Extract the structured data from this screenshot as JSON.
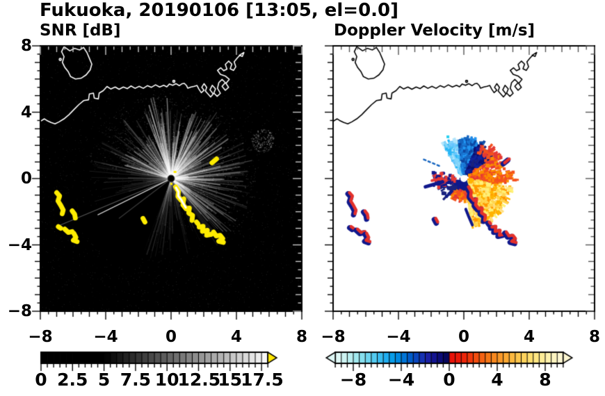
{
  "title": "Fukuoka, 20190106 [13:05, el=0.0]",
  "panels": {
    "snr": {
      "subtitle": "SNR [dB]"
    },
    "vel": {
      "subtitle": "Doppler Velocity [m/s]"
    }
  },
  "axes": {
    "xlim": [
      -8,
      8
    ],
    "ylim": [
      -8,
      8
    ],
    "xticks": [
      -8,
      -4,
      0,
      4,
      8
    ],
    "yticks": [
      8,
      4,
      0,
      -4,
      -8
    ],
    "xtick_labels": [
      "−8",
      "−4",
      "0",
      "4",
      "8"
    ],
    "ytick_labels": [
      "8",
      "4",
      "0",
      "−4",
      "−8"
    ],
    "minor_tick_step": 0.5,
    "mid_tick_step": 1,
    "major_tick_step": 4
  },
  "coastline": {
    "mainland": [
      [
        -8,
        3.45
      ],
      [
        -7.75,
        3.6
      ],
      [
        -7.6,
        3.5
      ],
      [
        -7.35,
        3.38
      ],
      [
        -7.1,
        3.3
      ],
      [
        -6.85,
        3.42
      ],
      [
        -6.55,
        3.6
      ],
      [
        -6.25,
        3.85
      ],
      [
        -5.95,
        4.15
      ],
      [
        -5.65,
        4.45
      ],
      [
        -5.35,
        4.7
      ],
      [
        -5.05,
        4.75
      ],
      [
        -5.0,
        5.1
      ],
      [
        -4.75,
        5.15
      ],
      [
        -4.7,
        4.85
      ],
      [
        -4.45,
        4.8
      ],
      [
        -4.4,
        5.15
      ],
      [
        -4.15,
        5.3
      ],
      [
        -3.92,
        5.55
      ],
      [
        -3.68,
        5.4
      ],
      [
        -3.42,
        5.52
      ],
      [
        -3.18,
        5.38
      ],
      [
        -2.92,
        5.52
      ],
      [
        -2.68,
        5.42
      ],
      [
        -2.45,
        5.58
      ],
      [
        -2.2,
        5.44
      ],
      [
        -1.95,
        5.56
      ],
      [
        -1.7,
        5.44
      ],
      [
        -1.45,
        5.6
      ],
      [
        -1.2,
        5.5
      ],
      [
        -0.95,
        5.65
      ],
      [
        -0.7,
        5.52
      ],
      [
        -0.45,
        5.62
      ],
      [
        -0.26,
        5.53
      ],
      [
        -0.1,
        5.7
      ],
      [
        0.1,
        5.62
      ],
      [
        0.3,
        5.72
      ],
      [
        0.5,
        5.6
      ],
      [
        0.68,
        5.72
      ],
      [
        0.81,
        5.74
      ],
      [
        0.95,
        5.6
      ],
      [
        1.02,
        5.45
      ],
      [
        1.22,
        5.52
      ],
      [
        1.42,
        5.56
      ],
      [
        1.59,
        5.61
      ],
      [
        1.7,
        5.4
      ],
      [
        1.85,
        5.18
      ],
      [
        2.02,
        5.32
      ],
      [
        1.88,
        5.5
      ],
      [
        2.02,
        5.72
      ],
      [
        2.18,
        5.5
      ],
      [
        2.1,
        5.28
      ],
      [
        2.28,
        5.08
      ],
      [
        2.42,
        4.92
      ],
      [
        2.58,
        5.1
      ],
      [
        2.38,
        5.35
      ],
      [
        2.52,
        5.62
      ],
      [
        2.72,
        5.4
      ],
      [
        2.62,
        5.15
      ],
      [
        2.82,
        4.96
      ],
      [
        3.02,
        5.14
      ],
      [
        2.84,
        5.44
      ],
      [
        2.92,
        5.78
      ],
      [
        3.12,
        5.98
      ],
      [
        3.32,
        5.78
      ],
      [
        3.12,
        5.56
      ],
      [
        3.32,
        5.32
      ],
      [
        3.52,
        5.5
      ],
      [
        3.36,
        5.74
      ],
      [
        3.56,
        5.98
      ],
      [
        3.32,
        6.18
      ],
      [
        3.02,
        6.28
      ],
      [
        2.84,
        6.52
      ],
      [
        3.04,
        6.68
      ],
      [
        3.22,
        6.5
      ],
      [
        3.42,
        6.6
      ],
      [
        3.32,
        6.88
      ],
      [
        3.52,
        7.08
      ],
      [
        3.72,
        6.9
      ],
      [
        3.62,
        6.62
      ],
      [
        3.82,
        6.52
      ],
      [
        3.96,
        6.74
      ],
      [
        3.86,
        7.04
      ],
      [
        4.06,
        7.28
      ],
      [
        4.26,
        7.48
      ],
      [
        4.46,
        7.6
      ],
      [
        4.36,
        7.36
      ],
      [
        4.18,
        7.44
      ]
    ],
    "island": [
      [
        -6.55,
        7.95
      ],
      [
        -6.2,
        7.7
      ],
      [
        -5.9,
        7.85
      ],
      [
        -5.6,
        7.75
      ],
      [
        -5.35,
        7.9
      ],
      [
        -5.15,
        7.6
      ],
      [
        -5.0,
        7.25
      ],
      [
        -4.85,
        6.9
      ],
      [
        -4.95,
        6.55
      ],
      [
        -5.2,
        6.25
      ],
      [
        -5.5,
        6.05
      ],
      [
        -5.85,
        6.0
      ],
      [
        -6.15,
        6.15
      ],
      [
        -6.3,
        6.45
      ],
      [
        -6.5,
        6.7
      ],
      [
        -6.65,
        7.0
      ],
      [
        -6.55,
        7.35
      ],
      [
        -6.7,
        7.65
      ],
      [
        -6.55,
        7.95
      ]
    ],
    "islets": [
      [
        0.17,
        5.86
      ],
      [
        -6.78,
        7.18
      ]
    ]
  },
  "chart_data": [
    {
      "type": "heatmap",
      "title": "SNR [dB]",
      "xlim": [
        -8,
        8
      ],
      "ylim": [
        -8,
        8
      ],
      "background": "#000000",
      "coastline_color": "#ffffff",
      "radar_center": [
        0,
        0
      ],
      "colorbar": {
        "min": 0,
        "max": 18,
        "segment_step": 0.5,
        "ticks": [
          0,
          2.5,
          5,
          7.5,
          10,
          12.5,
          15,
          17.5
        ],
        "tick_labels": [
          "0",
          "2.5",
          "5",
          "7.5",
          "10",
          "12.5",
          "15",
          "17.5"
        ],
        "ramp_start_color": "#000000",
        "ramp_end_color": "#ffffff",
        "first_nonblack_value": 5,
        "overflow_arrow_color": "#ffe600"
      },
      "ray_sectors": [
        {
          "az": [
            338,
            420
          ],
          "weight": 0.34
        },
        {
          "az": [
            60,
            140
          ],
          "weight": 0.22
        },
        {
          "az": [
            140,
            200
          ],
          "weight": 0.08
        },
        {
          "az": [
            200,
            252
          ],
          "weight": 0.015
        },
        {
          "az": [
            252,
            300
          ],
          "weight": 0.1
        },
        {
          "az": [
            300,
            338
          ],
          "weight": 0.18
        }
      ],
      "special_rays": [
        {
          "az": 244,
          "len": 5.0,
          "alpha": 0.8
        },
        {
          "az": 247.5,
          "len": 7.5,
          "alpha": 0.32
        },
        {
          "az": 233,
          "len": 4.0,
          "alpha": 0.22
        }
      ],
      "speckle_cluster": {
        "x": 5.6,
        "y": 2.3,
        "r": 0.7,
        "n": 160
      },
      "high_snr_color": "#ffec00",
      "high_snr_paths": [
        [
          [
            -7.0,
            -0.85
          ],
          [
            -6.82,
            -1.05
          ],
          [
            -6.92,
            -1.35
          ],
          [
            -6.75,
            -1.62
          ],
          [
            -6.6,
            -1.9
          ],
          [
            -6.66,
            -2.12
          ]
        ],
        [
          [
            -6.05,
            -1.95
          ],
          [
            -5.9,
            -2.15
          ],
          [
            -5.86,
            -2.38
          ]
        ],
        [
          [
            -6.9,
            -2.9
          ],
          [
            -6.75,
            -3.0
          ]
        ],
        [
          [
            -6.5,
            -3.05
          ],
          [
            -6.28,
            -3.25
          ],
          [
            -6.05,
            -3.2
          ]
        ],
        [
          [
            -5.95,
            -3.3
          ],
          [
            -5.82,
            -3.55
          ],
          [
            -5.98,
            -3.72
          ],
          [
            -5.75,
            -3.8
          ]
        ],
        [
          [
            -1.72,
            -2.4
          ],
          [
            -1.6,
            -2.62
          ]
        ],
        [
          [
            2.5,
            0.95
          ],
          [
            2.78,
            1.18
          ]
        ],
        [
          [
            0.28,
            -0.5
          ],
          [
            0.45,
            -0.78
          ],
          [
            0.42,
            -1.08
          ],
          [
            0.62,
            -1.32
          ],
          [
            0.78,
            -1.22
          ],
          [
            0.72,
            -1.58
          ],
          [
            0.92,
            -1.82
          ],
          [
            1.12,
            -1.78
          ],
          [
            1.08,
            -2.08
          ],
          [
            1.32,
            -2.22
          ],
          [
            1.28,
            -2.52
          ]
        ],
        [
          [
            1.56,
            -2.62
          ],
          [
            1.64,
            -2.72
          ]
        ],
        [
          [
            1.72,
            -2.92
          ],
          [
            1.96,
            -2.88
          ],
          [
            1.92,
            -3.18
          ],
          [
            2.22,
            -3.12
          ],
          [
            2.18,
            -3.42
          ],
          [
            2.46,
            -3.36
          ]
        ],
        [
          [
            2.6,
            -3.22
          ],
          [
            2.76,
            -3.46
          ],
          [
            3.0,
            -3.42
          ],
          [
            3.16,
            -3.62
          ],
          [
            2.92,
            -3.78
          ],
          [
            3.2,
            -3.85
          ]
        ]
      ],
      "white_core_path": [
        [
          0.3,
          -0.55
        ],
        [
          0.45,
          -0.8
        ],
        [
          0.44,
          -1.05
        ],
        [
          0.64,
          -1.3
        ],
        [
          0.74,
          -1.5
        ],
        [
          0.9,
          -1.75
        ]
      ]
    },
    {
      "type": "heatmap",
      "title": "Doppler Velocity [m/s]",
      "xlim": [
        -8,
        8
      ],
      "ylim": [
        -8,
        8
      ],
      "background": "#ffffff",
      "coastline_color": "#000000",
      "radar_center": [
        0,
        0
      ],
      "center_dot_color": "#ffffff",
      "colorbar": {
        "min": -9.5,
        "max": 9.5,
        "segment_step": 0.5,
        "ticks": [
          -8,
          -4,
          0,
          4,
          8
        ],
        "tick_labels": [
          "−8",
          "−4",
          "0",
          "4",
          "8"
        ],
        "colors_negative": [
          "#dff8f6",
          "#cdf3f2",
          "#b9eef0",
          "#a1e8ee",
          "#87dfee",
          "#6dd5ef",
          "#53caf0",
          "#39bcf0",
          "#20adf0",
          "#089ce8",
          "#0089e0",
          "#0074d6",
          "#005cca",
          "#0a46be",
          "#1632b2",
          "#1b20a4",
          "#131490",
          "#0c0c78",
          "#07075c"
        ],
        "colors_positive": [
          "#e81208",
          "#ea1808",
          "#ed2609",
          "#f0380c",
          "#f24e10",
          "#f46212",
          "#f67616",
          "#f8881e",
          "#f99828",
          "#fba832",
          "#fcb83e",
          "#fdc64c",
          "#fdd25c",
          "#fede6e",
          "#fee682",
          "#feec96",
          "#fef1ac",
          "#fdf4c0",
          "#fcf6d0"
        ],
        "arrow_both_ends": true
      },
      "pixel_sectors": [
        {
          "az": [
            328,
            365
          ],
          "r": [
            0.25,
            2.3
          ],
          "n": 500,
          "colors": [
            "#4fc3f7",
            "#29b6f6",
            "#6ec6ff",
            "#81d4fa",
            "#b3e5fc"
          ]
        },
        {
          "az": [
            352,
            390
          ],
          "r": [
            0.3,
            2.4
          ],
          "n": 420,
          "colors": [
            "#1e88e5",
            "#1565c0",
            "#0d47a1",
            "#1976d2",
            "#2196f3"
          ]
        },
        {
          "az": [
            22,
            55
          ],
          "r": [
            0.4,
            2.1
          ],
          "n": 300,
          "colors": [
            "#0d1b8c",
            "#10249e",
            "#0a1070",
            "#1a237e"
          ]
        },
        {
          "az": [
            28,
            62
          ],
          "r": [
            1.7,
            2.5
          ],
          "n": 55,
          "colors": [
            "#e53935",
            "#f4511e"
          ]
        },
        {
          "az": [
            55,
            100
          ],
          "r": [
            0.4,
            2.6
          ],
          "n": 210,
          "colors": [
            "#e53935",
            "#f4511e",
            "#fb8c00"
          ]
        },
        {
          "az": [
            82,
            94
          ],
          "r": [
            1.2,
            3.1
          ],
          "n": 60,
          "colors": [
            "#fb8c00",
            "#f4511e"
          ]
        },
        {
          "az": [
            100,
            170
          ],
          "r": [
            0.3,
            2.9
          ],
          "n": 720,
          "colors": [
            "#ffb300",
            "#ffd54f",
            "#ffe082",
            "#fff176",
            "#ff9800"
          ]
        },
        {
          "az": [
            170,
            220
          ],
          "r": [
            0.3,
            1.2
          ],
          "n": 160,
          "colors": [
            "#e53935",
            "#f4511e",
            "#fb8c00"
          ]
        },
        {
          "az": [
            150,
            250
          ],
          "r": [
            0.15,
            0.55
          ],
          "n": 90,
          "colors": [
            "#0d1b8c",
            "#10188c"
          ]
        },
        {
          "az": [
            220,
            260
          ],
          "r": [
            0.6,
            1.6
          ],
          "n": 40,
          "colors": [
            "#1a237e",
            "#0d1b8c"
          ]
        },
        {
          "az": [
            250,
            285
          ],
          "r": [
            0.5,
            1.9
          ],
          "n": 80,
          "colors": [
            "#e53935",
            "#10188c"
          ]
        }
      ],
      "strokes": [
        {
          "pts": [
            [
              -2.35,
              -0.5
            ],
            [
              -1.3,
              -0.2
            ]
          ],
          "color": "#10188c",
          "w": 5,
          "dash": []
        },
        {
          "pts": [
            [
              -1.95,
              -0.12
            ],
            [
              -1.32,
              0.0
            ]
          ],
          "color": "#e53935",
          "w": 4,
          "dash": []
        },
        {
          "pts": [
            [
              0.12,
              -1.85
            ],
            [
              0.3,
              -2.3
            ],
            [
              0.52,
              -2.8
            ]
          ],
          "color": "#10188c",
          "w": 4,
          "dash": []
        },
        {
          "pts": [
            [
              -2.45,
              1.15
            ],
            [
              -1.35,
              0.7
            ]
          ],
          "color": "#1565c0",
          "w": 2.5,
          "dash": [
            3,
            4
          ]
        }
      ],
      "cyan_speck": {
        "x": -1.06,
        "y": 2.6,
        "color": "#29d0f0"
      },
      "echo_outline_color": "#10188c",
      "echo_fill_color": "#e3312b"
    }
  ]
}
